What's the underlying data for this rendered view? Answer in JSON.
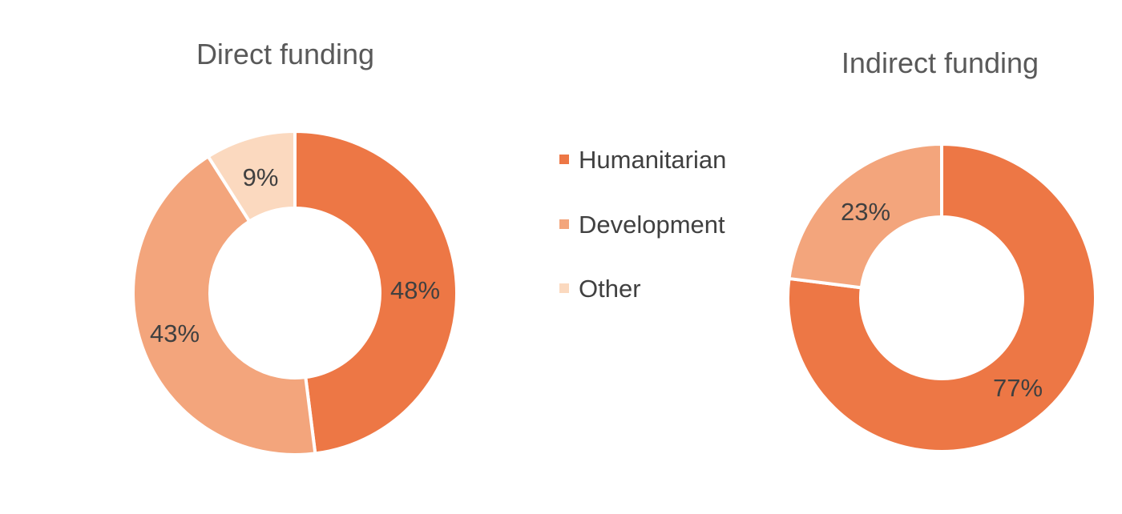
{
  "colors": {
    "humanitarian": "#ED7745",
    "development": "#F3A57C",
    "other": "#FBD9BF"
  },
  "legend": {
    "items": [
      {
        "label": "Humanitarian",
        "color": "#ED7745"
      },
      {
        "label": "Development",
        "color": "#F3A57C"
      },
      {
        "label": "Other",
        "color": "#FBD9BF"
      }
    ]
  },
  "chart_data": [
    {
      "type": "pie",
      "variant": "donut",
      "title": "Direct funding",
      "slices": [
        {
          "name": "Humanitarian",
          "value": 48,
          "label": "48%",
          "color": "#ED7745"
        },
        {
          "name": "Development",
          "value": 43,
          "label": "43%",
          "color": "#F3A57C"
        },
        {
          "name": "Other",
          "value": 9,
          "label": "9%",
          "color": "#FBD9BF"
        }
      ],
      "legend": "shared, center"
    },
    {
      "type": "pie",
      "variant": "donut",
      "title": "Indirect funding",
      "slices": [
        {
          "name": "Humanitarian",
          "value": 77,
          "label": "77%",
          "color": "#ED7745"
        },
        {
          "name": "Development",
          "value": 23,
          "label": "23%",
          "color": "#F3A57C"
        }
      ],
      "legend": "shared, center"
    }
  ]
}
